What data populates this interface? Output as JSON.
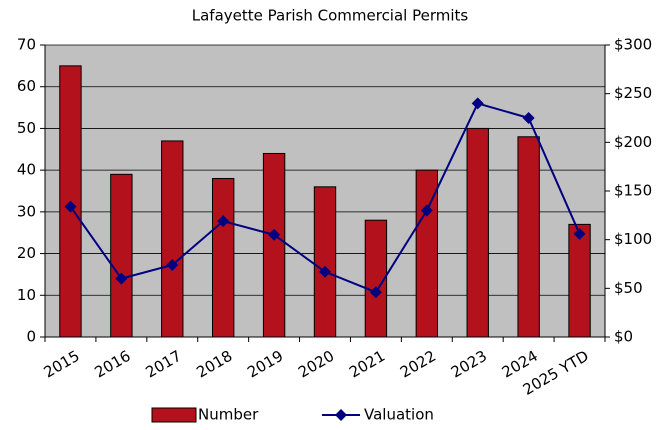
{
  "chart_data": {
    "type": "bar_line",
    "title": "Lafayette Parish Commercial Permits",
    "categories": [
      "2015",
      "2016",
      "2017",
      "2018",
      "2019",
      "2020",
      "2021",
      "2022",
      "2023",
      "2024",
      "2025 YTD"
    ],
    "series": [
      {
        "name": "Number",
        "type": "bar",
        "color": "#b3121c",
        "values": [
          65,
          39,
          47,
          38,
          44,
          36,
          28,
          40,
          50,
          48,
          27
        ]
      },
      {
        "name": "Valuation",
        "type": "line",
        "axis": "y2",
        "color": "#000080",
        "values": [
          134,
          60,
          74,
          119,
          105,
          67,
          46,
          130,
          240,
          225,
          106
        ]
      }
    ],
    "ylim": [
      0,
      70
    ],
    "yticks": [
      0,
      10,
      20,
      30,
      40,
      50,
      60,
      70
    ],
    "y2lim": [
      0,
      300
    ],
    "y2ticks": [
      {
        "value": 0,
        "label": "$0"
      },
      {
        "value": 50,
        "label": "$50"
      },
      {
        "value": 100,
        "label": "$100"
      },
      {
        "value": 150,
        "label": "$150"
      },
      {
        "value": 200,
        "label": "$200"
      },
      {
        "value": 250,
        "label": "$250"
      },
      {
        "value": 300,
        "label": "$300"
      }
    ],
    "grid": true,
    "legend": "bottom"
  }
}
